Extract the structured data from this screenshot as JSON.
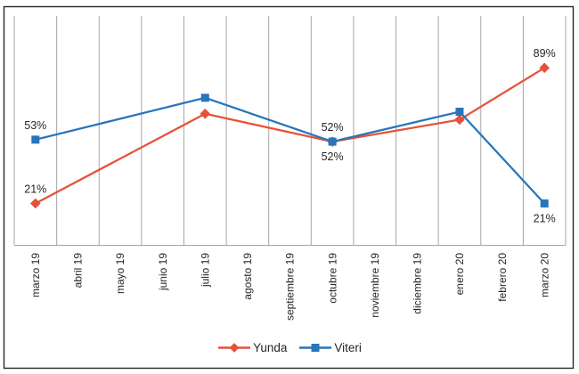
{
  "chart": {
    "background": "#ffffff",
    "border_color": "#262626",
    "gridline_color": "#a6a6a6",
    "axis_line_color": "#a6a6a6",
    "label_color": "#262626",
    "tick_label_color": "#262626"
  },
  "chart_data": {
    "type": "line",
    "title": "",
    "xlabel": "",
    "ylabel": "",
    "categories": [
      "marzo 19",
      "abril 19",
      "mayo 19",
      "junio 19",
      "julio 19",
      "agosto 19",
      "septiembre 19",
      "octubre 19",
      "noviembre 19",
      "diciembre 19",
      "enero 20",
      "febrero 20",
      "marzo 20"
    ],
    "tick_label_rotation_deg": -90,
    "grid": "vertical-only",
    "ylim": [
      0,
      115
    ],
    "y_axis_visible": false,
    "legend_position": "bottom-center",
    "series": [
      {
        "name": "Yunda",
        "color": "#e75138",
        "marker": "diamond",
        "points": [
          {
            "category": "marzo 19",
            "value": 21,
            "label": "21%",
            "label_pos": "above"
          },
          {
            "category": "julio 19",
            "value": 66,
            "label": null,
            "label_pos": null
          },
          {
            "category": "octubre 19",
            "value": 52,
            "label": "52%",
            "label_pos": "below"
          },
          {
            "category": "enero 20",
            "value": 63,
            "label": null,
            "label_pos": null
          },
          {
            "category": "marzo 20",
            "value": 89,
            "label": "89%",
            "label_pos": "above"
          }
        ]
      },
      {
        "name": "Viteri",
        "color": "#2775bb",
        "marker": "square",
        "points": [
          {
            "category": "marzo 19",
            "value": 53,
            "label": "53%",
            "label_pos": "above"
          },
          {
            "category": "julio 19",
            "value": 74,
            "label": null,
            "label_pos": null
          },
          {
            "category": "octubre 19",
            "value": 52,
            "label": "52%",
            "label_pos": "above"
          },
          {
            "category": "enero 20",
            "value": 67,
            "label": null,
            "label_pos": null
          },
          {
            "category": "marzo 20",
            "value": 21,
            "label": "21%",
            "label_pos": "below"
          }
        ]
      }
    ]
  }
}
